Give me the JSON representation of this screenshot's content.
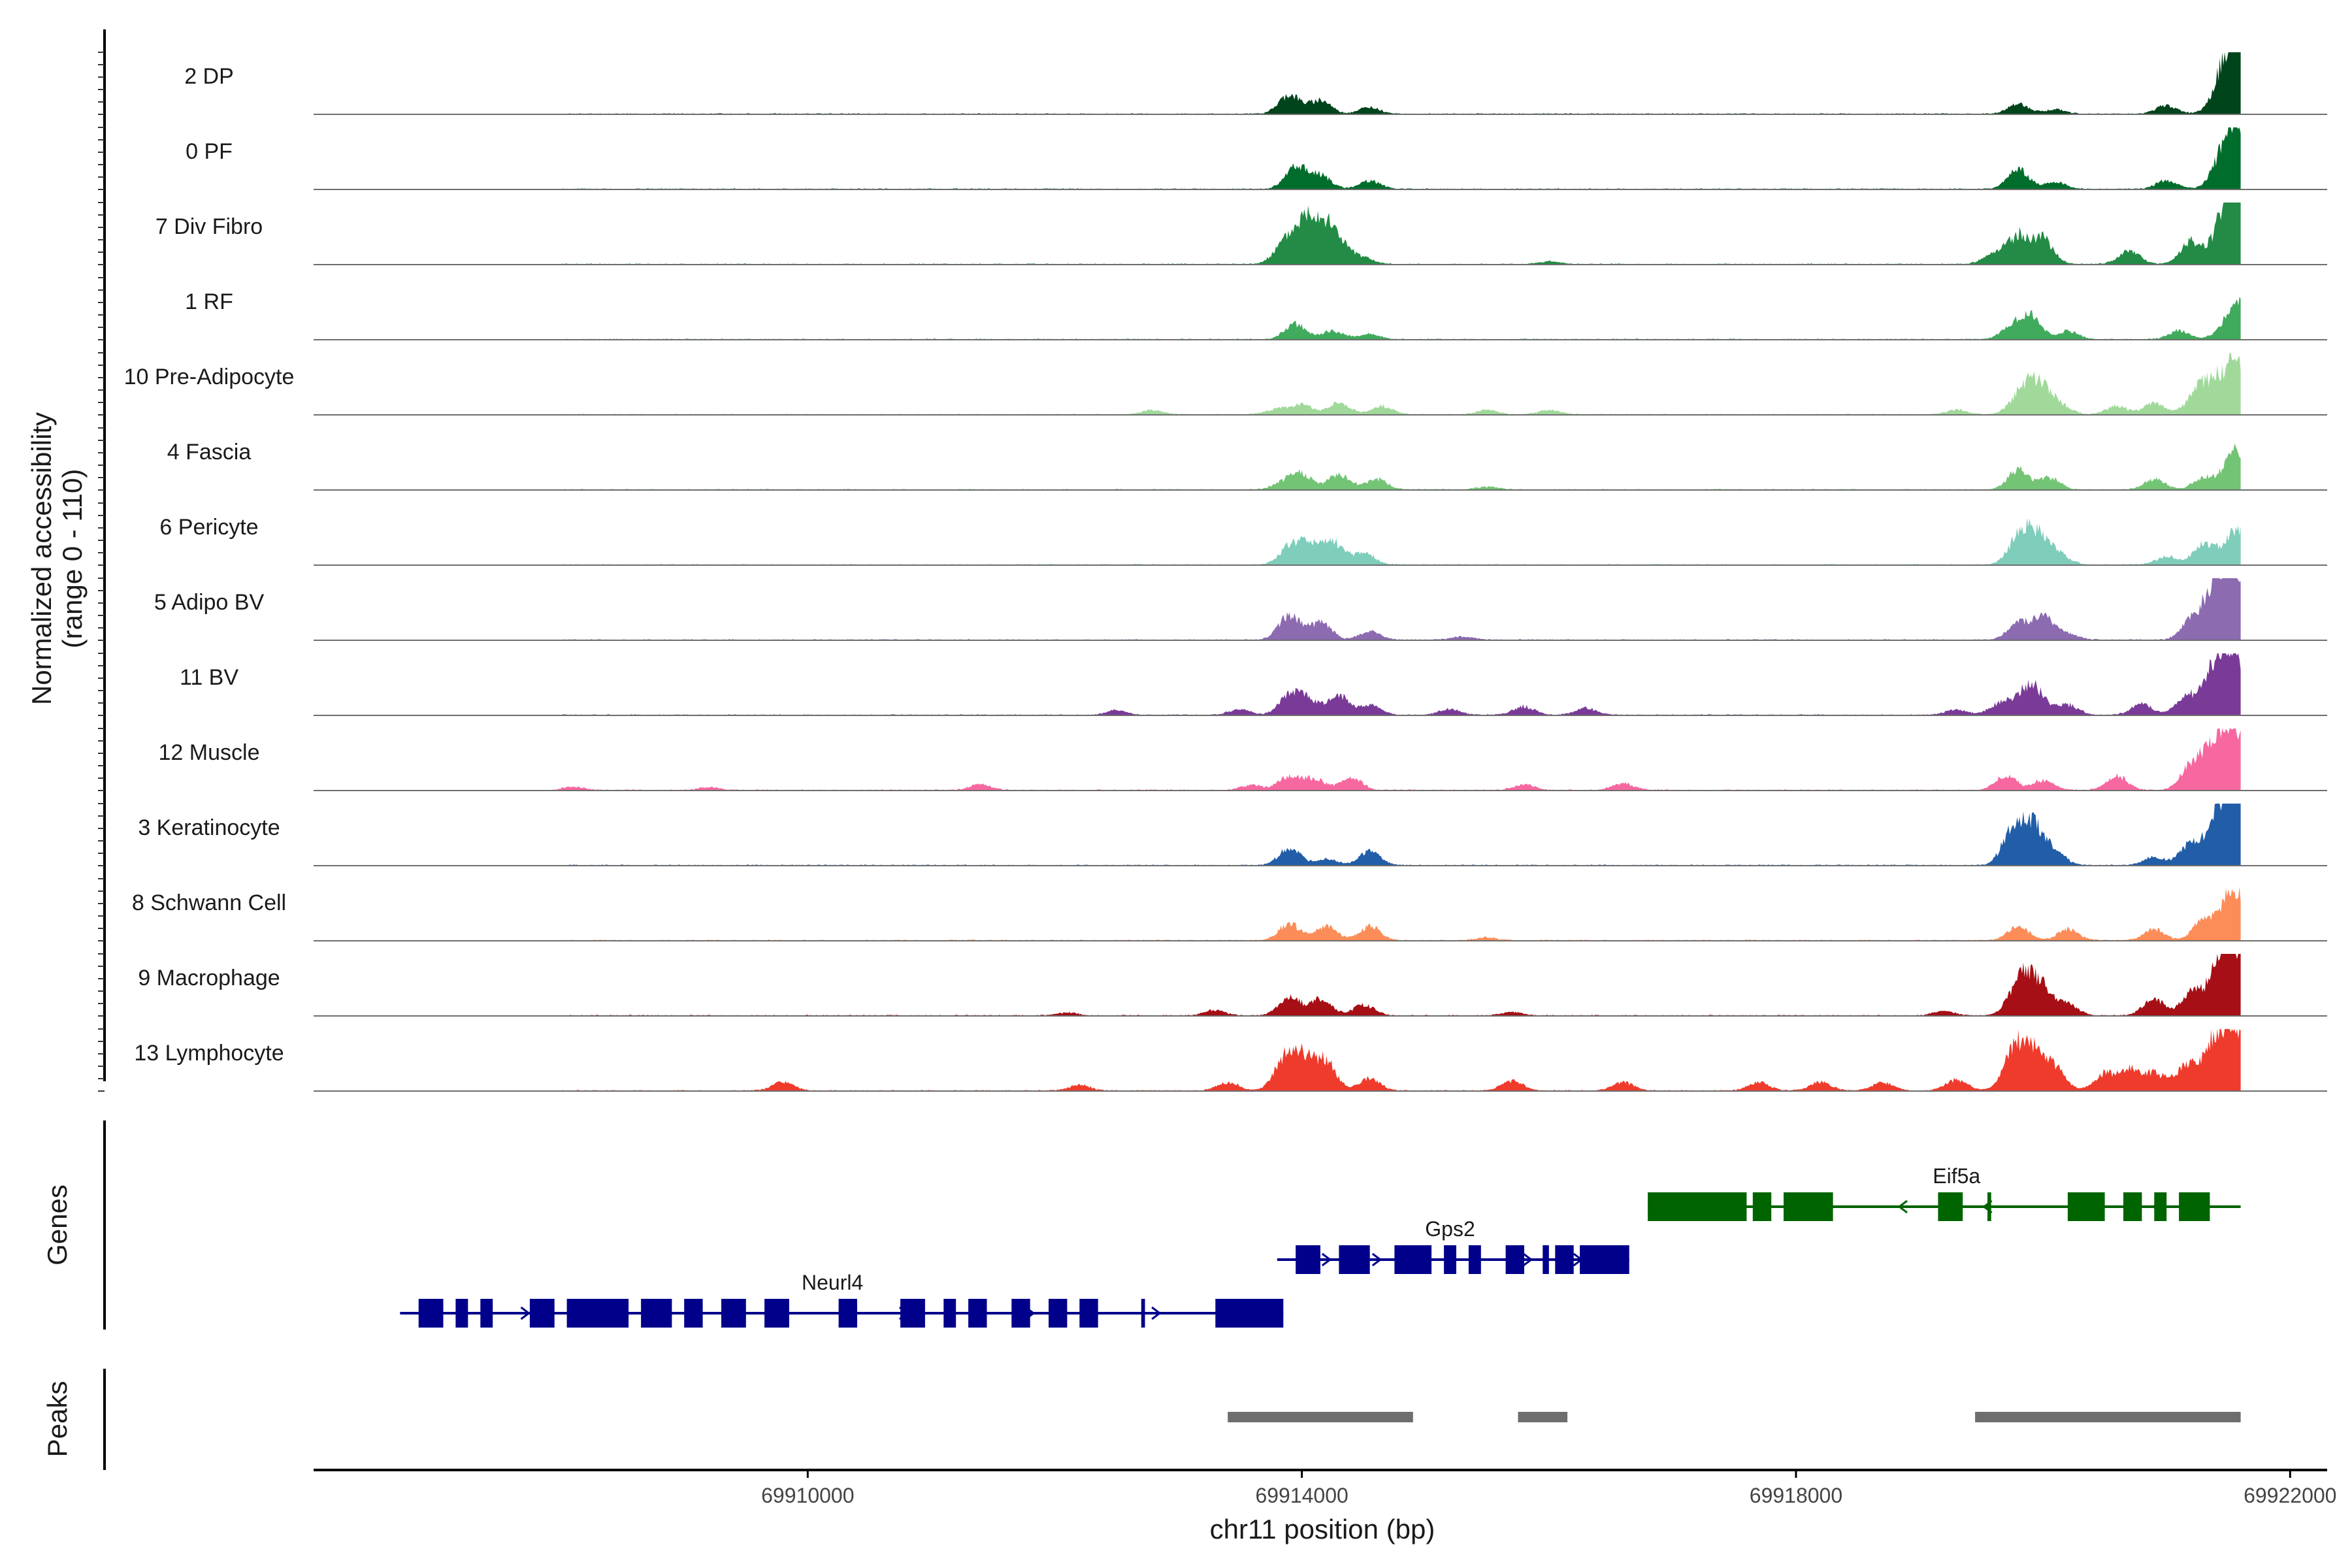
{
  "chart_data": {
    "type": "area",
    "xlabel": "chr11 position (bp)",
    "ylabel_line1": "Normalized accessibility",
    "ylabel_line2": "(range 0 - 110)",
    "ylim": [
      0,
      110
    ],
    "xlim": [
      69906000,
      69922300
    ],
    "data_end": 69921600,
    "x_ticks": [
      {
        "value": 69910000,
        "label": "69910000"
      },
      {
        "value": 69914000,
        "label": "69914000"
      },
      {
        "value": 69918000,
        "label": "69918000"
      },
      {
        "value": 69922000,
        "label": "69922000"
      }
    ],
    "baseline_noise": 2,
    "tracks": [
      {
        "name": "2 DP",
        "color": "#00441b",
        "peaks": [
          [
            69913900,
            35
          ],
          [
            69914150,
            25
          ],
          [
            69914550,
            12
          ],
          [
            69919800,
            18
          ],
          [
            69920100,
            8
          ],
          [
            69921000,
            15
          ],
          [
            69921500,
            60
          ],
          [
            69921580,
            95
          ]
        ]
      },
      {
        "name": "0 PF",
        "color": "#006d2c",
        "peaks": [
          [
            69913950,
            40
          ],
          [
            69914150,
            25
          ],
          [
            69914550,
            15
          ],
          [
            69919800,
            35
          ],
          [
            69920100,
            12
          ],
          [
            69921000,
            15
          ],
          [
            69921500,
            55
          ],
          [
            69921580,
            80
          ]
        ]
      },
      {
        "name": "7 Div Fibro",
        "color": "#238b45",
        "peaks": [
          [
            69913850,
            30
          ],
          [
            69914050,
            85
          ],
          [
            69914250,
            55
          ],
          [
            69914500,
            10
          ],
          [
            69916000,
            5
          ],
          [
            69919600,
            20
          ],
          [
            69919800,
            50
          ],
          [
            69920000,
            45
          ],
          [
            69920700,
            25
          ],
          [
            69921200,
            40
          ],
          [
            69921500,
            70
          ],
          [
            69921580,
            95
          ]
        ]
      },
      {
        "name": "1 RF",
        "color": "#41ab5d",
        "peaks": [
          [
            69913950,
            28
          ],
          [
            69914250,
            15
          ],
          [
            69914550,
            10
          ],
          [
            69919750,
            22
          ],
          [
            69919900,
            40
          ],
          [
            69920200,
            15
          ],
          [
            69921100,
            15
          ],
          [
            69921580,
            70
          ]
        ]
      },
      {
        "name": "10 Pre-Adipocyte",
        "color": "#a1d99b",
        "peaks": [
          [
            69912800,
            8
          ],
          [
            69913800,
            10
          ],
          [
            69914000,
            18
          ],
          [
            69914300,
            22
          ],
          [
            69914650,
            15
          ],
          [
            69915500,
            8
          ],
          [
            69916000,
            8
          ],
          [
            69919300,
            8
          ],
          [
            69919800,
            22
          ],
          [
            69919950,
            60
          ],
          [
            69920150,
            12
          ],
          [
            69920600,
            15
          ],
          [
            69920900,
            20
          ],
          [
            69921300,
            55
          ],
          [
            69921550,
            95
          ]
        ]
      },
      {
        "name": "4 Fascia",
        "color": "#74c476",
        "peaks": [
          [
            69913850,
            12
          ],
          [
            69914000,
            28
          ],
          [
            69914300,
            28
          ],
          [
            69914600,
            20
          ],
          [
            69915500,
            5
          ],
          [
            69919800,
            35
          ],
          [
            69920050,
            22
          ],
          [
            69920900,
            18
          ],
          [
            69921300,
            20
          ],
          [
            69921580,
            75
          ]
        ]
      },
      {
        "name": "6 Pericyte",
        "color": "#7fcdbb",
        "peaks": [
          [
            69913900,
            30
          ],
          [
            69914050,
            35
          ],
          [
            69914250,
            40
          ],
          [
            69914500,
            22
          ],
          [
            69919800,
            40
          ],
          [
            69919950,
            55
          ],
          [
            69920150,
            12
          ],
          [
            69921000,
            15
          ],
          [
            69921300,
            35
          ],
          [
            69921580,
            65
          ]
        ]
      },
      {
        "name": "5 Adipo BV",
        "color": "#8c6bb1",
        "peaks": [
          [
            69913900,
            45
          ],
          [
            69914150,
            32
          ],
          [
            69914550,
            15
          ],
          [
            69915300,
            6
          ],
          [
            69919800,
            30
          ],
          [
            69920000,
            40
          ],
          [
            69920200,
            10
          ],
          [
            69921200,
            30
          ],
          [
            69921400,
            80
          ],
          [
            69921550,
            110
          ]
        ]
      },
      {
        "name": "11 BV",
        "color": "#7a3b98",
        "peaks": [
          [
            69912500,
            8
          ],
          [
            69913500,
            10
          ],
          [
            69913900,
            35
          ],
          [
            69914050,
            25
          ],
          [
            69914300,
            35
          ],
          [
            69914550,
            18
          ],
          [
            69915200,
            10
          ],
          [
            69915800,
            15
          ],
          [
            69916300,
            12
          ],
          [
            69919300,
            10
          ],
          [
            69919650,
            20
          ],
          [
            69919900,
            55
          ],
          [
            69920200,
            18
          ],
          [
            69920800,
            20
          ],
          [
            69921150,
            30
          ],
          [
            69921400,
            75
          ],
          [
            69921550,
            100
          ]
        ]
      },
      {
        "name": "12 Muscle",
        "color": "#f768a1",
        "peaks": [
          [
            69908100,
            6
          ],
          [
            69909200,
            5
          ],
          [
            69911400,
            10
          ],
          [
            69913600,
            10
          ],
          [
            69913900,
            25
          ],
          [
            69914100,
            20
          ],
          [
            69914400,
            22
          ],
          [
            69915800,
            10
          ],
          [
            69916600,
            12
          ],
          [
            69919700,
            25
          ],
          [
            69920000,
            18
          ],
          [
            69920600,
            25
          ],
          [
            69921200,
            40
          ],
          [
            69921400,
            70
          ],
          [
            69921550,
            95
          ]
        ]
      },
      {
        "name": "3 Keratinocyte",
        "color": "#225ea8",
        "peaks": [
          [
            69913900,
            30
          ],
          [
            69914200,
            12
          ],
          [
            69914550,
            25
          ],
          [
            69919750,
            50
          ],
          [
            69919900,
            72
          ],
          [
            69920100,
            20
          ],
          [
            69920900,
            15
          ],
          [
            69921200,
            40
          ],
          [
            69921450,
            85
          ],
          [
            69921580,
            100
          ]
        ]
      },
      {
        "name": "8 Schwann Cell",
        "color": "#fc8d59",
        "peaks": [
          [
            69913900,
            30
          ],
          [
            69914200,
            25
          ],
          [
            69914550,
            25
          ],
          [
            69915500,
            5
          ],
          [
            69919800,
            25
          ],
          [
            69920200,
            20
          ],
          [
            69920900,
            20
          ],
          [
            69921300,
            35
          ],
          [
            69921550,
            95
          ]
        ]
      },
      {
        "name": "9 Macrophage",
        "color": "#a50f15",
        "peaks": [
          [
            69912100,
            5
          ],
          [
            69913300,
            10
          ],
          [
            69913900,
            35
          ],
          [
            69914150,
            30
          ],
          [
            69914500,
            20
          ],
          [
            69915700,
            6
          ],
          [
            69919200,
            8
          ],
          [
            69919800,
            50
          ],
          [
            69919950,
            60
          ],
          [
            69920200,
            20
          ],
          [
            69920900,
            30
          ],
          [
            69921200,
            40
          ],
          [
            69921450,
            70
          ],
          [
            69921550,
            95
          ]
        ]
      },
      {
        "name": "13 Lymphocyte",
        "color": "#ef3b2c",
        "peaks": [
          [
            69909800,
            15
          ],
          [
            69912200,
            10
          ],
          [
            69913400,
            15
          ],
          [
            69913850,
            40
          ],
          [
            69914000,
            60
          ],
          [
            69914200,
            45
          ],
          [
            69914550,
            22
          ],
          [
            69915700,
            18
          ],
          [
            69916600,
            15
          ],
          [
            69917700,
            15
          ],
          [
            69918200,
            15
          ],
          [
            69918700,
            15
          ],
          [
            69919300,
            20
          ],
          [
            69919750,
            50
          ],
          [
            69919900,
            75
          ],
          [
            69920100,
            35
          ],
          [
            69920500,
            30
          ],
          [
            69920700,
            35
          ],
          [
            69920900,
            30
          ],
          [
            69921150,
            40
          ],
          [
            69921400,
            85
          ],
          [
            69921580,
            95
          ]
        ]
      }
    ],
    "genes_label": "Genes",
    "genes": [
      {
        "name": "Eif5a",
        "color": "#006400",
        "row": 0,
        "start": 69916800,
        "end": 69921600,
        "strand": "-",
        "label_x": 69919300,
        "exons": [
          [
            69916800,
            69917600
          ],
          [
            69917650,
            69917800
          ],
          [
            69917900,
            69918300
          ],
          [
            69919150,
            69919350
          ],
          [
            69919550,
            69919580
          ],
          [
            69920200,
            69920500
          ],
          [
            69920650,
            69920800
          ],
          [
            69920900,
            69921000
          ],
          [
            69921100,
            69921350
          ]
        ]
      },
      {
        "name": "Gps2",
        "color": "#00008b",
        "row": 1,
        "start": 69913800,
        "end": 69916650,
        "strand": "+",
        "label_x": 69915200,
        "exons": [
          [
            69913950,
            69914150
          ],
          [
            69914300,
            69914550
          ],
          [
            69914750,
            69915050
          ],
          [
            69915150,
            69915250
          ],
          [
            69915350,
            69915450
          ],
          [
            69915650,
            69915800
          ],
          [
            69915950,
            69916000
          ],
          [
            69916050,
            69916200
          ],
          [
            69916250,
            69916650
          ]
        ]
      },
      {
        "name": "Neurl4",
        "color": "#00008b",
        "row": 2,
        "start": 69906700,
        "end": 69913850,
        "strand": "+",
        "label_x": 69910200,
        "exons": [
          [
            69906850,
            69907050
          ],
          [
            69907150,
            69907250
          ],
          [
            69907350,
            69907450
          ],
          [
            69907750,
            69907950
          ],
          [
            69908050,
            69908550
          ],
          [
            69908650,
            69908900
          ],
          [
            69909000,
            69909150
          ],
          [
            69909300,
            69909500
          ],
          [
            69909650,
            69909850
          ],
          [
            69910250,
            69910400
          ],
          [
            69910750,
            69910950
          ],
          [
            69911100,
            69911200
          ],
          [
            69911300,
            69911450
          ],
          [
            69911650,
            69911800
          ],
          [
            69911950,
            69912100
          ],
          [
            69912200,
            69912350
          ],
          [
            69912700,
            69912730
          ],
          [
            69913300,
            69913850
          ]
        ]
      }
    ],
    "peaks_label": "Peaks",
    "peak_regions": [
      [
        69913400,
        69914900
      ],
      [
        69915750,
        69916150
      ],
      [
        69919450,
        69921600
      ]
    ]
  }
}
